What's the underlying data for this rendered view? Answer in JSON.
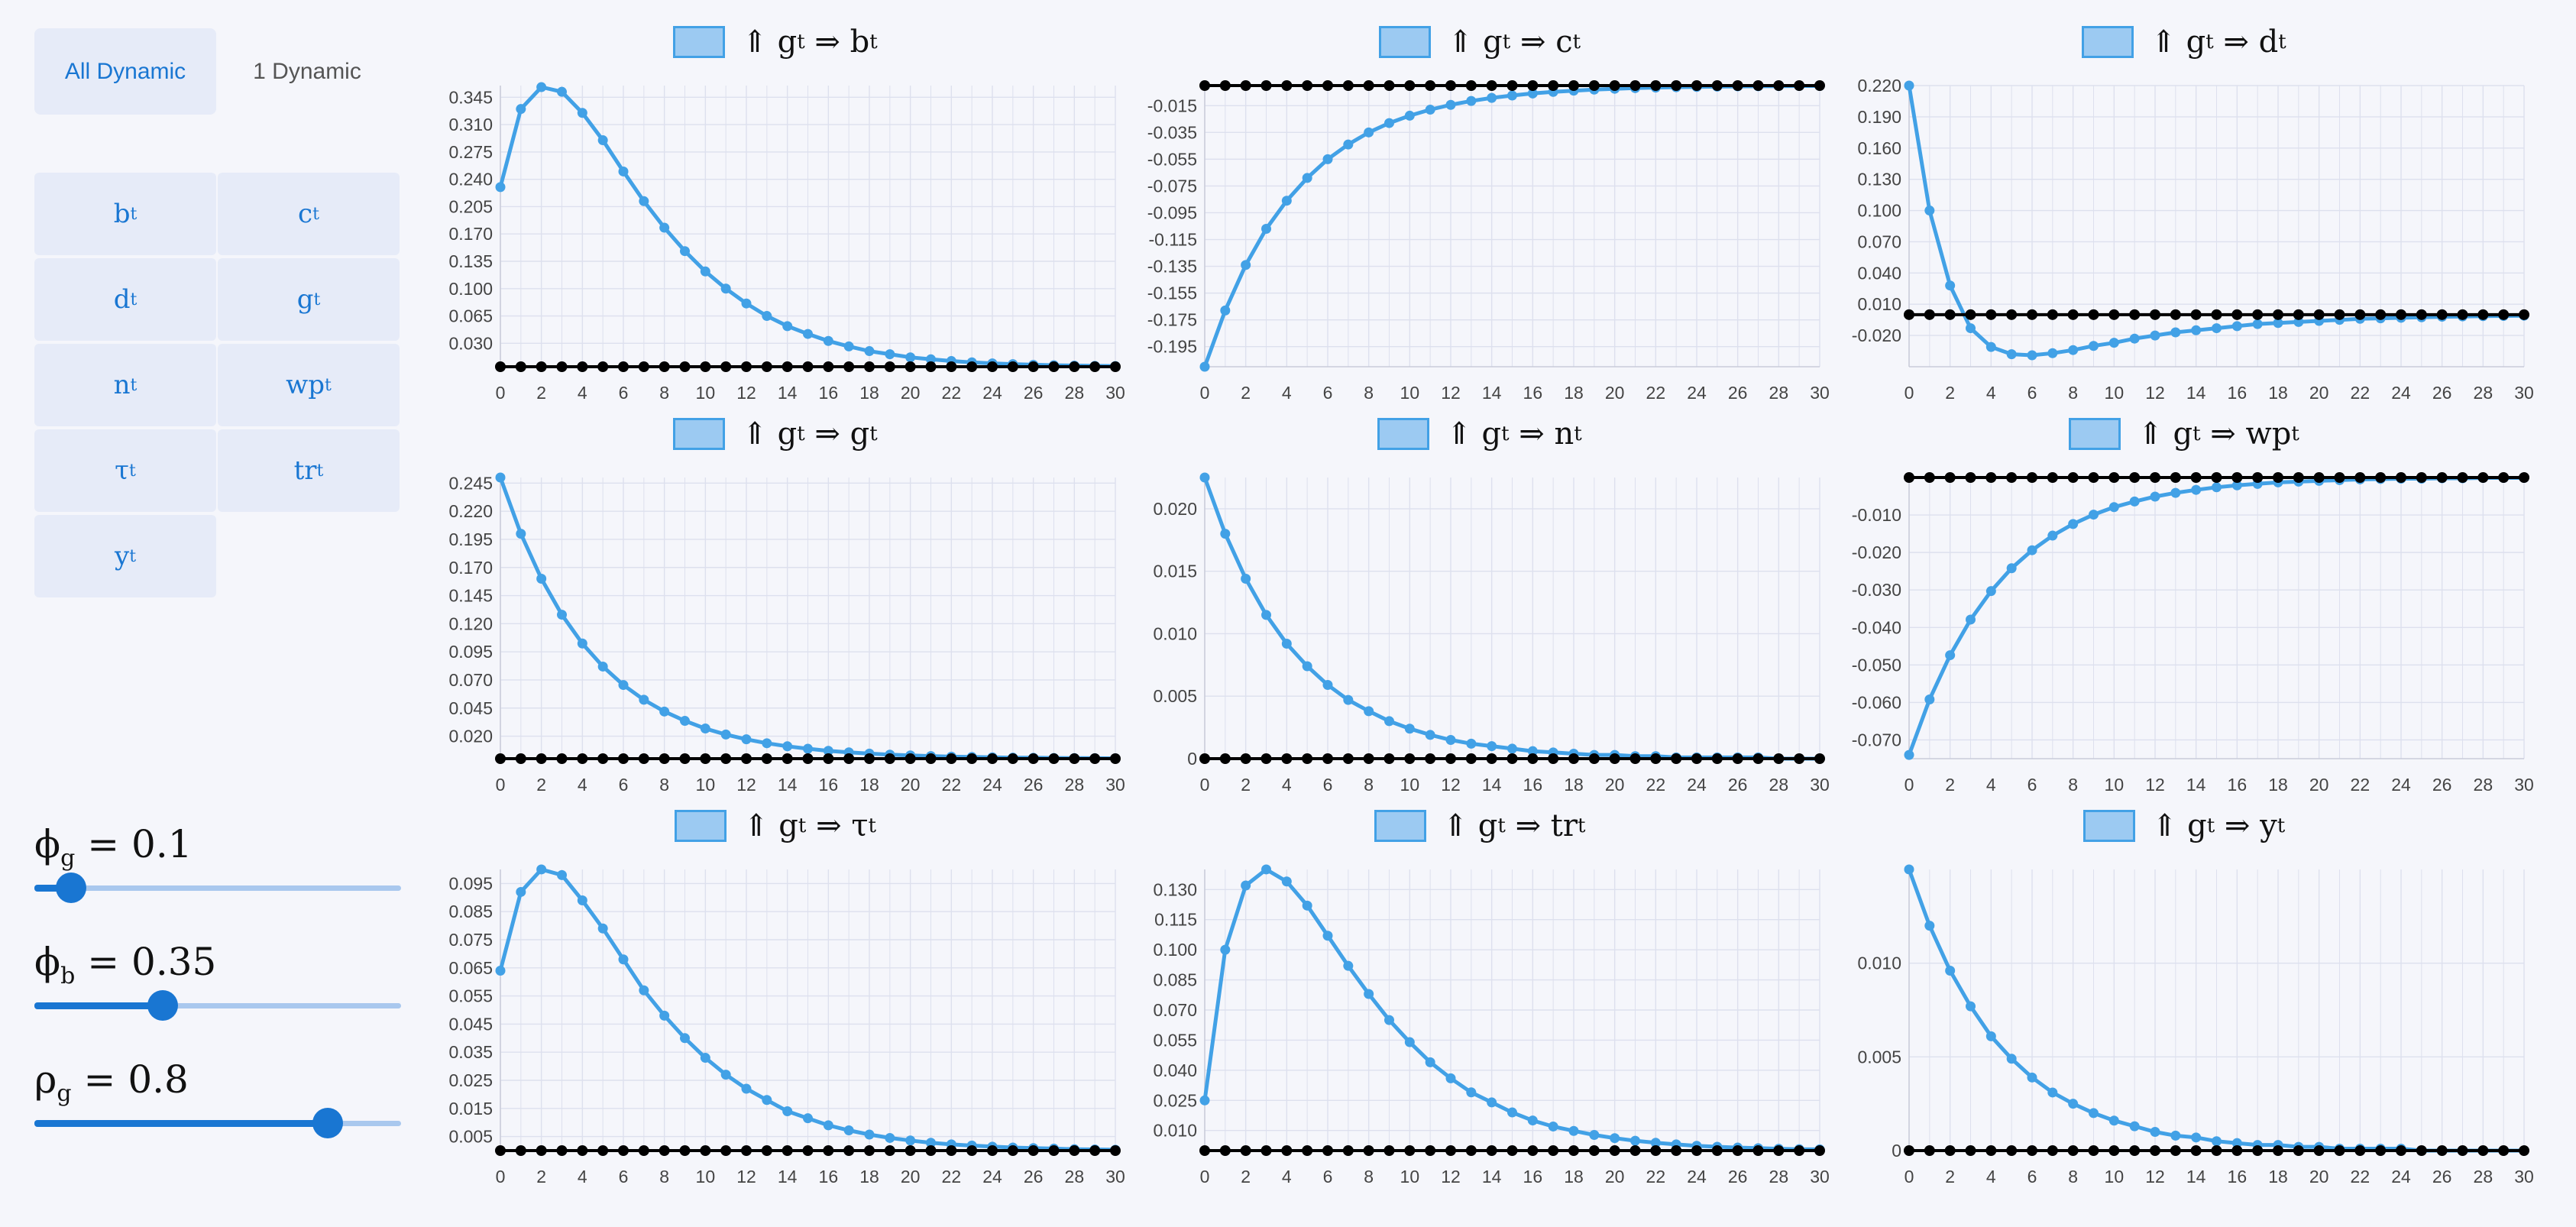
{
  "tabs": [
    {
      "label": "All Dynamic"
    },
    {
      "label": "1 Dynamic"
    }
  ],
  "variables": [
    {
      "base": "b",
      "sub": "t"
    },
    {
      "base": "c",
      "sub": "t"
    },
    {
      "base": "d",
      "sub": "t"
    },
    {
      "base": "g",
      "sub": "t"
    },
    {
      "base": "n",
      "sub": "t"
    },
    {
      "base": "wp",
      "sub": "t"
    },
    {
      "base": "τ",
      "sub": "t"
    },
    {
      "base": "tr",
      "sub": "t"
    },
    {
      "base": "y",
      "sub": "t"
    }
  ],
  "params": [
    {
      "symbol": "ϕ",
      "sub": "g",
      "value_text": "= 0.1",
      "value": 0.1,
      "fraction": 0.1
    },
    {
      "symbol": "ϕ",
      "sub": "b",
      "value_text": "= 0.35",
      "value": 0.35,
      "fraction": 0.35
    },
    {
      "symbol": "ρ",
      "sub": "g",
      "value_text": "= 0.8",
      "value": 0.8,
      "fraction": 0.8
    }
  ],
  "colors": {
    "series": "#42a1e6",
    "baseline": "#000000",
    "grid": "#d4d7e8",
    "accent": "#1976d2"
  },
  "chart_data": [
    {
      "type": "line",
      "title": "⇑ gt ⇒ bt",
      "title_lhs": "⇑ g",
      "title_lhs_sub": "t",
      "title_arrow": "⇒",
      "title_rhs": "b",
      "title_rhs_sub": "t",
      "x_range": [
        0,
        30
      ],
      "xticks": [
        0,
        2,
        4,
        6,
        8,
        10,
        12,
        14,
        16,
        18,
        20,
        22,
        24,
        26,
        28,
        30
      ],
      "y_range": [
        0,
        0.36
      ],
      "yticks": [
        0.03,
        0.065,
        0.1,
        0.135,
        0.17,
        0.205,
        0.24,
        0.275,
        0.31,
        0.345
      ],
      "ytick_labels": [
        "0.030",
        "0.065",
        "0.100",
        "0.135",
        "0.170",
        "0.205",
        "0.240",
        "0.275",
        "0.310",
        "0.345"
      ],
      "series": [
        {
          "values": [
            0.23,
            0.33,
            0.358,
            0.352,
            0.325,
            0.29,
            0.25,
            0.212,
            0.178,
            0.148,
            0.122,
            0.1,
            0.081,
            0.065,
            0.052,
            0.042,
            0.033,
            0.026,
            0.02,
            0.016,
            0.012,
            0.0095,
            0.0073,
            0.0056,
            0.0043,
            0.0033,
            0.0025,
            0.0019,
            0.0015,
            0.0011,
            0.0009
          ]
        },
        {
          "values": [
            0,
            0,
            0,
            0,
            0,
            0,
            0,
            0,
            0,
            0,
            0,
            0,
            0,
            0,
            0,
            0,
            0,
            0,
            0,
            0,
            0,
            0,
            0,
            0,
            0,
            0,
            0,
            0,
            0,
            0,
            0
          ]
        }
      ]
    },
    {
      "type": "line",
      "title": "⇑ gt ⇒ ct",
      "title_lhs": "⇑ g",
      "title_lhs_sub": "t",
      "title_arrow": "⇒",
      "title_rhs": "c",
      "title_rhs_sub": "t",
      "x_range": [
        0,
        30
      ],
      "xticks": [
        0,
        2,
        4,
        6,
        8,
        10,
        12,
        14,
        16,
        18,
        20,
        22,
        24,
        26,
        28,
        30
      ],
      "y_range": [
        -0.21,
        0
      ],
      "yticks": [
        -0.195,
        -0.175,
        -0.155,
        -0.135,
        -0.115,
        -0.095,
        -0.075,
        -0.055,
        -0.035,
        -0.015
      ],
      "ytick_labels": [
        "-0.195",
        "-0.175",
        "-0.155",
        "-0.135",
        "-0.115",
        "-0.095",
        "-0.075",
        "-0.055",
        "-0.035",
        "-0.015"
      ],
      "series": [
        {
          "values": [
            -0.21,
            -0.168,
            -0.134,
            -0.107,
            -0.086,
            -0.069,
            -0.055,
            -0.044,
            -0.035,
            -0.028,
            -0.0225,
            -0.018,
            -0.0144,
            -0.0115,
            -0.0092,
            -0.0074,
            -0.0059,
            -0.0047,
            -0.0038,
            -0.003,
            -0.0024,
            -0.0019,
            -0.0015,
            -0.0012,
            -0.001,
            -0.0008,
            -0.0006,
            -0.0005,
            -0.0004,
            -0.0003,
            -0.0003
          ]
        },
        {
          "values": [
            0,
            0,
            0,
            0,
            0,
            0,
            0,
            0,
            0,
            0,
            0,
            0,
            0,
            0,
            0,
            0,
            0,
            0,
            0,
            0,
            0,
            0,
            0,
            0,
            0,
            0,
            0,
            0,
            0,
            0,
            0
          ]
        }
      ]
    },
    {
      "type": "line",
      "title": "⇑ gt ⇒ dt",
      "title_lhs": "⇑ g",
      "title_lhs_sub": "t",
      "title_arrow": "⇒",
      "title_rhs": "d",
      "title_rhs_sub": "t",
      "x_range": [
        0,
        30
      ],
      "xticks": [
        0,
        2,
        4,
        6,
        8,
        10,
        12,
        14,
        16,
        18,
        20,
        22,
        24,
        26,
        28,
        30
      ],
      "y_range": [
        -0.05,
        0.22
      ],
      "yticks": [
        -0.02,
        0.01,
        0.04,
        0.07,
        0.1,
        0.13,
        0.16,
        0.19,
        0.22
      ],
      "ytick_labels": [
        "-0.020",
        "0.010",
        "0.040",
        "0.070",
        "0.100",
        "0.130",
        "0.160",
        "0.190",
        "0.220"
      ],
      "series": [
        {
          "values": [
            0.22,
            0.1,
            0.028,
            -0.013,
            -0.031,
            -0.038,
            -0.039,
            -0.037,
            -0.034,
            -0.03,
            -0.027,
            -0.023,
            -0.02,
            -0.017,
            -0.015,
            -0.013,
            -0.011,
            -0.009,
            -0.008,
            -0.007,
            -0.006,
            -0.005,
            -0.004,
            -0.0035,
            -0.003,
            -0.0025,
            -0.002,
            -0.0017,
            -0.0014,
            -0.0012,
            -0.001
          ]
        },
        {
          "values": [
            0,
            0,
            0,
            0,
            0,
            0,
            0,
            0,
            0,
            0,
            0,
            0,
            0,
            0,
            0,
            0,
            0,
            0,
            0,
            0,
            0,
            0,
            0,
            0,
            0,
            0,
            0,
            0,
            0,
            0,
            0
          ]
        }
      ]
    },
    {
      "type": "line",
      "title": "⇑ gt ⇒ gt",
      "title_lhs": "⇑ g",
      "title_lhs_sub": "t",
      "title_arrow": "⇒",
      "title_rhs": "g",
      "title_rhs_sub": "t",
      "x_range": [
        0,
        30
      ],
      "xticks": [
        0,
        2,
        4,
        6,
        8,
        10,
        12,
        14,
        16,
        18,
        20,
        22,
        24,
        26,
        28,
        30
      ],
      "y_range": [
        0,
        0.25
      ],
      "yticks": [
        0.02,
        0.045,
        0.07,
        0.095,
        0.12,
        0.145,
        0.17,
        0.195,
        0.22,
        0.245
      ],
      "ytick_labels": [
        "0.020",
        "0.045",
        "0.070",
        "0.095",
        "0.120",
        "0.145",
        "0.170",
        "0.195",
        "0.220",
        "0.245"
      ],
      "series": [
        {
          "values": [
            0.25,
            0.2,
            0.16,
            0.128,
            0.1024,
            0.0819,
            0.0655,
            0.0524,
            0.0419,
            0.0336,
            0.0268,
            0.0215,
            0.0172,
            0.0137,
            0.011,
            0.0088,
            0.007,
            0.0056,
            0.0045,
            0.0036,
            0.0029,
            0.0023,
            0.0018,
            0.0015,
            0.0012,
            0.0009,
            0.0008,
            0.0006,
            0.0005,
            0.0004,
            0.0003
          ]
        },
        {
          "values": [
            0,
            0,
            0,
            0,
            0,
            0,
            0,
            0,
            0,
            0,
            0,
            0,
            0,
            0,
            0,
            0,
            0,
            0,
            0,
            0,
            0,
            0,
            0,
            0,
            0,
            0,
            0,
            0,
            0,
            0,
            0
          ]
        }
      ]
    },
    {
      "type": "line",
      "title": "⇑ gt ⇒ nt",
      "title_lhs": "⇑ g",
      "title_lhs_sub": "t",
      "title_arrow": "⇒",
      "title_rhs": "n",
      "title_rhs_sub": "t",
      "x_range": [
        0,
        30
      ],
      "xticks": [
        0,
        2,
        4,
        6,
        8,
        10,
        12,
        14,
        16,
        18,
        20,
        22,
        24,
        26,
        28,
        30
      ],
      "y_range": [
        0,
        0.0225
      ],
      "yticks": [
        0,
        0.005,
        0.01,
        0.015,
        0.02
      ],
      "ytick_labels": [
        "0",
        "0.005",
        "0.010",
        "0.015",
        "0.020"
      ],
      "series": [
        {
          "values": [
            0.0225,
            0.018,
            0.0144,
            0.0115,
            0.0092,
            0.0074,
            0.0059,
            0.0047,
            0.0038,
            0.003,
            0.0024,
            0.0019,
            0.0015,
            0.0012,
            0.001,
            0.0008,
            0.0006,
            0.0005,
            0.0004,
            0.0003,
            0.0003,
            0.0002,
            0.0002,
            0.0001,
            0.0001,
            0.0001,
            0.0001,
            0.0001,
            0,
            0,
            0
          ]
        },
        {
          "values": [
            0,
            0,
            0,
            0,
            0,
            0,
            0,
            0,
            0,
            0,
            0,
            0,
            0,
            0,
            0,
            0,
            0,
            0,
            0,
            0,
            0,
            0,
            0,
            0,
            0,
            0,
            0,
            0,
            0,
            0,
            0
          ]
        }
      ]
    },
    {
      "type": "line",
      "title": "⇑ gt ⇒ wpt",
      "title_lhs": "⇑ g",
      "title_lhs_sub": "t",
      "title_arrow": "⇒",
      "title_rhs": "wp",
      "title_rhs_sub": "t",
      "x_range": [
        0,
        30
      ],
      "xticks": [
        0,
        2,
        4,
        6,
        8,
        10,
        12,
        14,
        16,
        18,
        20,
        22,
        24,
        26,
        28,
        30
      ],
      "y_range": [
        -0.075,
        0
      ],
      "yticks": [
        -0.07,
        -0.06,
        -0.05,
        -0.04,
        -0.03,
        -0.02,
        -0.01
      ],
      "ytick_labels": [
        "-0.070",
        "-0.060",
        "-0.050",
        "-0.040",
        "-0.030",
        "-0.020",
        "-0.010"
      ],
      "series": [
        {
          "values": [
            -0.074,
            -0.0592,
            -0.0474,
            -0.0379,
            -0.0303,
            -0.0242,
            -0.0194,
            -0.0155,
            -0.0124,
            -0.0099,
            -0.0079,
            -0.0064,
            -0.0051,
            -0.0041,
            -0.0033,
            -0.0026,
            -0.0021,
            -0.0017,
            -0.0013,
            -0.0011,
            -0.0009,
            -0.0007,
            -0.0005,
            -0.0004,
            -0.0003,
            -0.0003,
            -0.0002,
            -0.0002,
            -0.0001,
            -0.0001,
            -0.0001
          ]
        },
        {
          "values": [
            0,
            0,
            0,
            0,
            0,
            0,
            0,
            0,
            0,
            0,
            0,
            0,
            0,
            0,
            0,
            0,
            0,
            0,
            0,
            0,
            0,
            0,
            0,
            0,
            0,
            0,
            0,
            0,
            0,
            0,
            0
          ]
        }
      ]
    },
    {
      "type": "line",
      "title": "⇑ gt ⇒ τt",
      "title_lhs": "⇑ g",
      "title_lhs_sub": "t",
      "title_arrow": "⇒",
      "title_rhs": "τ",
      "title_rhs_sub": "t",
      "x_range": [
        0,
        30
      ],
      "xticks": [
        0,
        2,
        4,
        6,
        8,
        10,
        12,
        14,
        16,
        18,
        20,
        22,
        24,
        26,
        28,
        30
      ],
      "y_range": [
        0,
        0.1
      ],
      "yticks": [
        0.005,
        0.015,
        0.025,
        0.035,
        0.045,
        0.055,
        0.065,
        0.075,
        0.085,
        0.095
      ],
      "ytick_labels": [
        "0.005",
        "0.015",
        "0.025",
        "0.035",
        "0.045",
        "0.055",
        "0.065",
        "0.075",
        "0.085",
        "0.095"
      ],
      "series": [
        {
          "values": [
            0.064,
            0.092,
            0.1,
            0.098,
            0.089,
            0.079,
            0.068,
            0.057,
            0.048,
            0.04,
            0.033,
            0.027,
            0.022,
            0.018,
            0.014,
            0.0115,
            0.009,
            0.0072,
            0.0057,
            0.0045,
            0.0036,
            0.0028,
            0.0022,
            0.0018,
            0.0014,
            0.0011,
            0.0009,
            0.0007,
            0.0005,
            0.0004,
            0.0003
          ]
        },
        {
          "values": [
            0,
            0,
            0,
            0,
            0,
            0,
            0,
            0,
            0,
            0,
            0,
            0,
            0,
            0,
            0,
            0,
            0,
            0,
            0,
            0,
            0,
            0,
            0,
            0,
            0,
            0,
            0,
            0,
            0,
            0,
            0
          ]
        }
      ]
    },
    {
      "type": "line",
      "title": "⇑ gt ⇒ trt",
      "title_lhs": "⇑ g",
      "title_lhs_sub": "t",
      "title_arrow": "⇒",
      "title_rhs": "tr",
      "title_rhs_sub": "t",
      "x_range": [
        0,
        30
      ],
      "xticks": [
        0,
        2,
        4,
        6,
        8,
        10,
        12,
        14,
        16,
        18,
        20,
        22,
        24,
        26,
        28,
        30
      ],
      "y_range": [
        0,
        0.14
      ],
      "yticks": [
        0.01,
        0.025,
        0.04,
        0.055,
        0.07,
        0.085,
        0.1,
        0.115,
        0.13
      ],
      "ytick_labels": [
        "0.010",
        "0.025",
        "0.040",
        "0.055",
        "0.070",
        "0.085",
        "0.100",
        "0.115",
        "0.130"
      ],
      "series": [
        {
          "values": [
            0.025,
            0.1,
            0.132,
            0.14,
            0.134,
            0.122,
            0.107,
            0.092,
            0.078,
            0.065,
            0.054,
            0.044,
            0.036,
            0.029,
            0.024,
            0.019,
            0.015,
            0.012,
            0.0098,
            0.0078,
            0.0062,
            0.0049,
            0.0039,
            0.0031,
            0.0024,
            0.0019,
            0.0015,
            0.0012,
            0.0009,
            0.0007,
            0.0006
          ]
        },
        {
          "values": [
            0,
            0,
            0,
            0,
            0,
            0,
            0,
            0,
            0,
            0,
            0,
            0,
            0,
            0,
            0,
            0,
            0,
            0,
            0,
            0,
            0,
            0,
            0,
            0,
            0,
            0,
            0,
            0,
            0,
            0,
            0
          ]
        }
      ]
    },
    {
      "type": "line",
      "title": "⇑ gt ⇒ yt",
      "title_lhs": "⇑ g",
      "title_lhs_sub": "t",
      "title_arrow": "⇒",
      "title_rhs": "y",
      "title_rhs_sub": "t",
      "x_range": [
        0,
        30
      ],
      "xticks": [
        0,
        2,
        4,
        6,
        8,
        10,
        12,
        14,
        16,
        18,
        20,
        22,
        24,
        26,
        28,
        30
      ],
      "y_range": [
        0,
        0.015
      ],
      "yticks": [
        0,
        0.005,
        0.01
      ],
      "ytick_labels": [
        "0",
        "0.005",
        "0.010"
      ],
      "series": [
        {
          "values": [
            0.015,
            0.012,
            0.0096,
            0.0077,
            0.0061,
            0.0049,
            0.0039,
            0.0031,
            0.0025,
            0.002,
            0.0016,
            0.0013,
            0.001,
            0.0008,
            0.0007,
            0.0005,
            0.0004,
            0.0003,
            0.0003,
            0.0002,
            0.0002,
            0.0001,
            0.0001,
            0.0001,
            0.0001,
            0,
            0,
            0,
            0,
            0,
            0
          ]
        },
        {
          "values": [
            0,
            0,
            0,
            0,
            0,
            0,
            0,
            0,
            0,
            0,
            0,
            0,
            0,
            0,
            0,
            0,
            0,
            0,
            0,
            0,
            0,
            0,
            0,
            0,
            0,
            0,
            0,
            0,
            0,
            0,
            0
          ]
        }
      ]
    }
  ]
}
